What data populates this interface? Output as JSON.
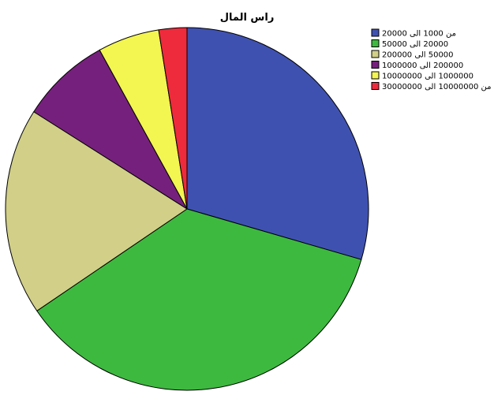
{
  "chart_data": {
    "type": "pie",
    "title": "راس المال",
    "start_angle_deg": 0,
    "direction": "clockwise",
    "legend": "top-right",
    "slices": [
      {
        "label": "من 1000 الى 20000",
        "value": 29.5,
        "color": "#3f51b0"
      },
      {
        "label": "20000 الى 50000",
        "value": 36.0,
        "color": "#3db93f"
      },
      {
        "label": "50000 الى 200000",
        "value": 18.5,
        "color": "#d1cf88"
      },
      {
        "label": "200000 الى 1000000",
        "value": 8.0,
        "color": "#76207d"
      },
      {
        "label": "1000000 الى 10000000",
        "value": 5.5,
        "color": "#f3f551"
      },
      {
        "label": "من 10000000 الى 30000000",
        "value": 2.5,
        "color": "#ee2b3c"
      }
    ]
  }
}
